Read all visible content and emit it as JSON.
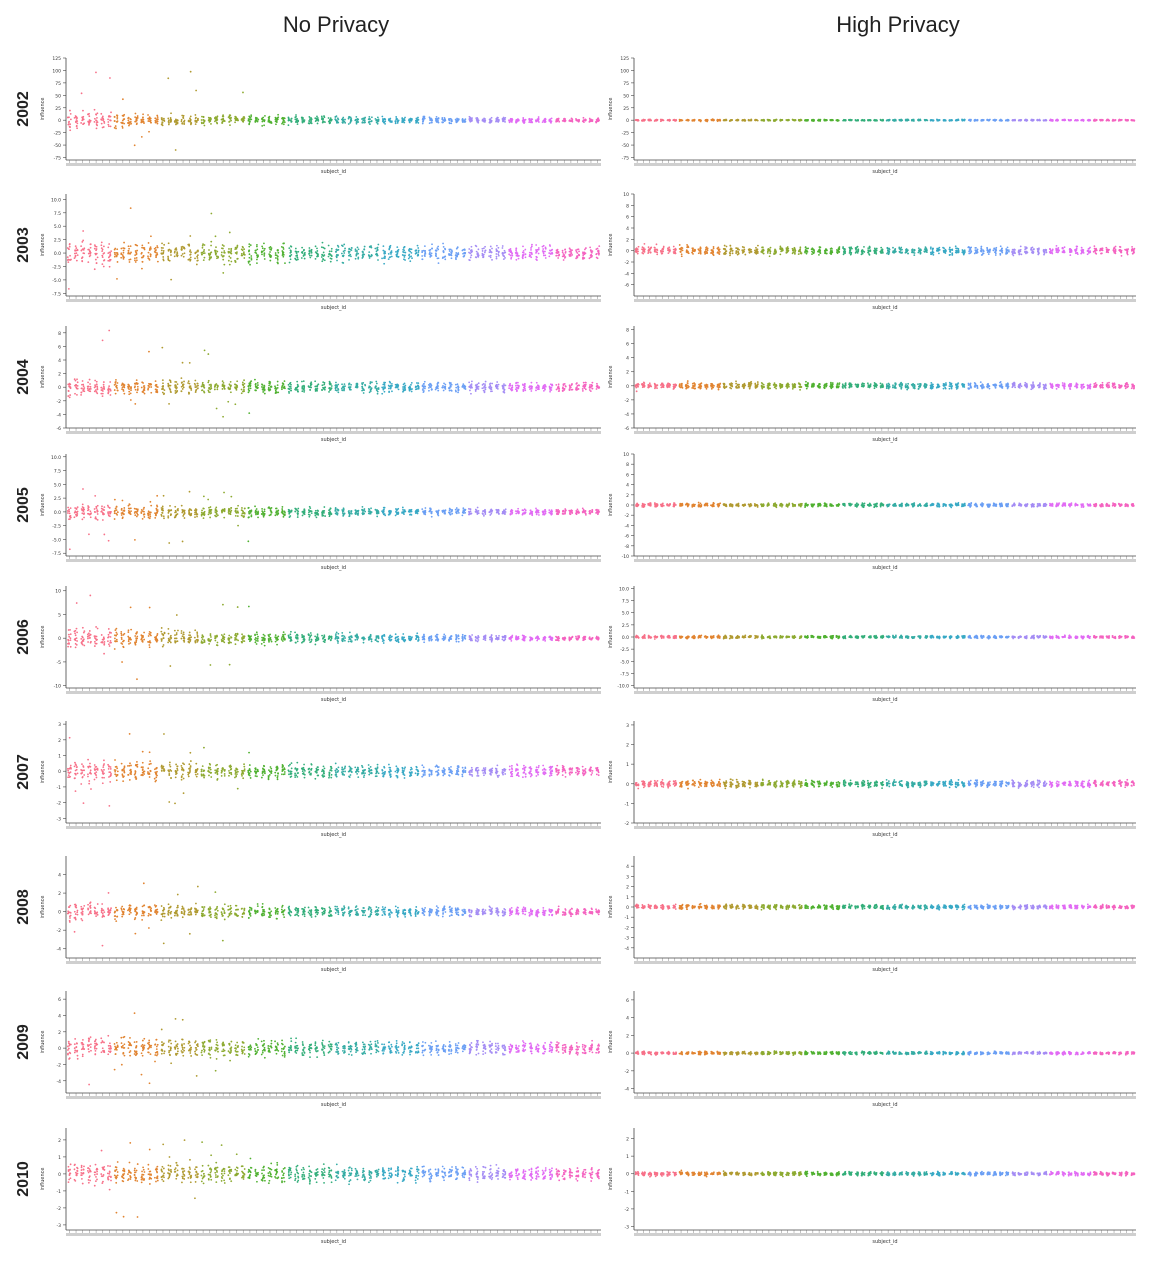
{
  "column_titles": {
    "left": "No Privacy",
    "right": "High Privacy"
  },
  "colors": [
    "#f77189",
    "#e18431",
    "#b09a31",
    "#8daa31",
    "#50b131",
    "#33ae7a",
    "#35aca4",
    "#38a9c5",
    "#6b9ff4",
    "#a48cf4",
    "#e16bf4",
    "#f463c0"
  ],
  "row_labels": [
    "2002",
    "2003",
    "2004",
    "2005",
    "2006",
    "2007",
    "2008",
    "2009",
    "2010"
  ],
  "chart_data": [
    {
      "type": "scatter",
      "plot_kind": "strip",
      "year": "2002",
      "privacy": "No Privacy",
      "xlabel": "subject_id",
      "ylabel": "influence",
      "ylim": [
        -80,
        125
      ],
      "yticks": [
        -75,
        -50,
        -25,
        0,
        25,
        50,
        75,
        100,
        125
      ],
      "yticklabels": [
        "-75",
        "-50",
        "-25",
        "0",
        "25",
        "50",
        "75",
        "100",
        "125"
      ],
      "n_categories": 80,
      "spread_start": 28,
      "spread_end": 6,
      "outlier_max": 120,
      "outlier_min": -75,
      "seed": 1
    },
    {
      "type": "scatter",
      "plot_kind": "strip",
      "year": "2002",
      "privacy": "High Privacy",
      "xlabel": "subject_id",
      "ylabel": "influence",
      "ylim": [
        -80,
        125
      ],
      "yticks": [
        -75,
        -50,
        -25,
        0,
        25,
        50,
        75,
        100,
        125
      ],
      "yticklabels": [
        "-75",
        "-50",
        "-25",
        "0",
        "25",
        "50",
        "75",
        "100",
        "125"
      ],
      "n_categories": 80,
      "spread_start": 2,
      "spread_end": 2,
      "outlier_max": 3,
      "outlier_min": -3,
      "seed": 2
    },
    {
      "type": "scatter",
      "plot_kind": "strip",
      "year": "2003",
      "privacy": "No Privacy",
      "xlabel": "subject_id",
      "ylabel": "influence",
      "ylim": [
        -8,
        11
      ],
      "yticks": [
        -7.5,
        -5,
        -2.5,
        0,
        2.5,
        5,
        7.5,
        10
      ],
      "yticklabels": [
        "-7.5",
        "-5.0",
        "-2.5",
        "0.0",
        "2.5",
        "5.0",
        "7.5",
        "10.0"
      ],
      "n_categories": 80,
      "spread_start": 3.5,
      "spread_end": 1.8,
      "outlier_max": 10,
      "outlier_min": -7,
      "seed": 3
    },
    {
      "type": "scatter",
      "plot_kind": "strip",
      "year": "2003",
      "privacy": "High Privacy",
      "xlabel": "subject_id",
      "ylabel": "influence",
      "ylim": [
        -8,
        10
      ],
      "yticks": [
        -6,
        -4,
        -2,
        0,
        2,
        4,
        6,
        8,
        10
      ],
      "yticklabels": [
        "-6",
        "-4",
        "-2",
        "0",
        "2",
        "4",
        "6",
        "8",
        "10"
      ],
      "n_categories": 80,
      "spread_start": 1,
      "spread_end": 1,
      "outlier_max": 1.3,
      "outlier_min": -1.3,
      "seed": 4
    },
    {
      "type": "scatter",
      "plot_kind": "strip",
      "year": "2004",
      "privacy": "No Privacy",
      "xlabel": "subject_id",
      "ylabel": "influence",
      "ylim": [
        -6,
        9
      ],
      "yticks": [
        -6,
        -4,
        -2,
        0,
        2,
        4,
        6,
        8
      ],
      "yticklabels": [
        "-6",
        "-4",
        "-2",
        "0",
        "2",
        "4",
        "6",
        "8"
      ],
      "n_categories": 80,
      "spread_start": 2,
      "spread_end": 0.9,
      "outlier_max": 9,
      "outlier_min": -6,
      "seed": 5
    },
    {
      "type": "scatter",
      "plot_kind": "strip",
      "year": "2004",
      "privacy": "High Privacy",
      "xlabel": "subject_id",
      "ylabel": "influence",
      "ylim": [
        -6,
        8.5
      ],
      "yticks": [
        -6,
        -4,
        -2,
        0,
        2,
        4,
        6,
        8
      ],
      "yticklabels": [
        "-6",
        "-4",
        "-2",
        "0",
        "2",
        "4",
        "6",
        "8"
      ],
      "n_categories": 80,
      "spread_start": 0.6,
      "spread_end": 0.6,
      "outlier_max": 0.8,
      "outlier_min": -0.8,
      "seed": 6
    },
    {
      "type": "scatter",
      "plot_kind": "strip",
      "year": "2005",
      "privacy": "No Privacy",
      "xlabel": "subject_id",
      "ylabel": "influence",
      "ylim": [
        -8,
        10.5
      ],
      "yticks": [
        -7.5,
        -5,
        -2.5,
        0,
        2.5,
        5,
        7.5,
        10
      ],
      "yticklabels": [
        "-7.5",
        "-5.0",
        "-2.5",
        "0.0",
        "2.5",
        "5.0",
        "7.5",
        "10.0"
      ],
      "n_categories": 80,
      "spread_start": 2.5,
      "spread_end": 0.7,
      "outlier_max": 4.5,
      "outlier_min": -7.5,
      "seed": 7
    },
    {
      "type": "scatter",
      "plot_kind": "strip",
      "year": "2005",
      "privacy": "High Privacy",
      "xlabel": "subject_id",
      "ylabel": "influence",
      "ylim": [
        -10,
        10
      ],
      "yticks": [
        -10,
        -8,
        -6,
        -4,
        -2,
        0,
        2,
        4,
        6,
        8,
        10
      ],
      "yticklabels": [
        "-10",
        "-8",
        "-6",
        "-4",
        "-2",
        "0",
        "2",
        "4",
        "6",
        "8",
        "10"
      ],
      "n_categories": 80,
      "spread_start": 0.5,
      "spread_end": 0.5,
      "outlier_max": 0.6,
      "outlier_min": -0.6,
      "seed": 8
    },
    {
      "type": "scatter",
      "plot_kind": "strip",
      "year": "2006",
      "privacy": "No Privacy",
      "xlabel": "subject_id",
      "ylabel": "influence",
      "ylim": [
        -10.5,
        11
      ],
      "yticks": [
        -10,
        -5,
        0,
        5,
        10
      ],
      "yticklabels": [
        "-10",
        "-5",
        "0",
        "5",
        "10"
      ],
      "n_categories": 80,
      "spread_start": 4,
      "spread_end": 0.6,
      "outlier_max": 10.5,
      "outlier_min": -10,
      "seed": 9
    },
    {
      "type": "scatter",
      "plot_kind": "strip",
      "year": "2006",
      "privacy": "High Privacy",
      "xlabel": "subject_id",
      "ylabel": "influence",
      "ylim": [
        -10.5,
        10.5
      ],
      "yticks": [
        -10,
        -7.5,
        -5,
        -2.5,
        0,
        2.5,
        5,
        7.5,
        10
      ],
      "yticklabels": [
        "-10.0",
        "-7.5",
        "-5.0",
        "-2.5",
        "0.0",
        "2.5",
        "5.0",
        "7.5",
        "10.0"
      ],
      "n_categories": 80,
      "spread_start": 0.4,
      "spread_end": 0.4,
      "outlier_max": 0.5,
      "outlier_min": -0.5,
      "seed": 10
    },
    {
      "type": "scatter",
      "plot_kind": "strip",
      "year": "2007",
      "privacy": "No Privacy",
      "xlabel": "subject_id",
      "ylabel": "influence",
      "ylim": [
        -3.3,
        3.2
      ],
      "yticks": [
        -3,
        -2,
        -1,
        0,
        1,
        2,
        3
      ],
      "yticklabels": [
        "-3",
        "-2",
        "-1",
        "0",
        "1",
        "2",
        "3"
      ],
      "n_categories": 80,
      "spread_start": 1.2,
      "spread_end": 0.45,
      "outlier_max": 3,
      "outlier_min": -2.5,
      "seed": 11
    },
    {
      "type": "scatter",
      "plot_kind": "strip",
      "year": "2007",
      "privacy": "High Privacy",
      "xlabel": "subject_id",
      "ylabel": "influence",
      "ylim": [
        -2,
        3.2
      ],
      "yticks": [
        -2,
        -1,
        0,
        1,
        2,
        3
      ],
      "yticklabels": [
        "-2",
        "-1",
        "0",
        "1",
        "2",
        "3"
      ],
      "n_categories": 80,
      "spread_start": 0.25,
      "spread_end": 0.25,
      "outlier_max": 0.3,
      "outlier_min": -0.3,
      "seed": 12
    },
    {
      "type": "scatter",
      "plot_kind": "strip",
      "year": "2008",
      "privacy": "No Privacy",
      "xlabel": "subject_id",
      "ylabel": "influence",
      "ylim": [
        -5,
        6
      ],
      "yticks": [
        -4,
        -2,
        0,
        2,
        4
      ],
      "yticklabels": [
        "-4",
        "-2",
        "0",
        "2",
        "4"
      ],
      "n_categories": 80,
      "spread_start": 1.6,
      "spread_end": 0.6,
      "outlier_max": 5,
      "outlier_min": -4.5,
      "seed": 13
    },
    {
      "type": "scatter",
      "plot_kind": "strip",
      "year": "2008",
      "privacy": "High Privacy",
      "xlabel": "subject_id",
      "ylabel": "influence",
      "ylim": [
        -5,
        5
      ],
      "yticks": [
        -4,
        -3,
        -2,
        -1,
        0,
        1,
        2,
        3,
        4
      ],
      "yticklabels": [
        "-4",
        "-3",
        "-2",
        "-1",
        "0",
        "1",
        "2",
        "3",
        "4"
      ],
      "n_categories": 80,
      "spread_start": 0.3,
      "spread_end": 0.3,
      "outlier_max": 0.35,
      "outlier_min": -0.35,
      "seed": 14
    },
    {
      "type": "scatter",
      "plot_kind": "strip",
      "year": "2009",
      "privacy": "No Privacy",
      "xlabel": "subject_id",
      "ylabel": "influence",
      "ylim": [
        -5.5,
        7
      ],
      "yticks": [
        -4,
        -2,
        0,
        2,
        4,
        6
      ],
      "yticklabels": [
        "-4",
        "-2",
        "0",
        "2",
        "4",
        "6"
      ],
      "n_categories": 80,
      "spread_start": 2.2,
      "spread_end": 1,
      "outlier_max": 6.5,
      "outlier_min": -5,
      "seed": 15
    },
    {
      "type": "scatter",
      "plot_kind": "strip",
      "year": "2009",
      "privacy": "High Privacy",
      "xlabel": "subject_id",
      "ylabel": "influence",
      "ylim": [
        -4.5,
        7
      ],
      "yticks": [
        -4,
        -2,
        0,
        2,
        4,
        6
      ],
      "yticklabels": [
        "-4",
        "-2",
        "0",
        "2",
        "4",
        "6"
      ],
      "n_categories": 80,
      "spread_start": 0.25,
      "spread_end": 0.25,
      "outlier_max": 0.3,
      "outlier_min": -0.3,
      "seed": 16
    },
    {
      "type": "scatter",
      "plot_kind": "strip",
      "year": "2010",
      "privacy": "No Privacy",
      "xlabel": "subject_id",
      "ylabel": "influence",
      "ylim": [
        -3.3,
        2.7
      ],
      "yticks": [
        -3,
        -2,
        -1,
        0,
        1,
        2
      ],
      "yticklabels": [
        "-3",
        "-2",
        "-1",
        "0",
        "1",
        "2"
      ],
      "n_categories": 80,
      "spread_start": 1.1,
      "spread_end": 0.55,
      "outlier_max": 2.5,
      "outlier_min": -3,
      "seed": 17
    },
    {
      "type": "scatter",
      "plot_kind": "strip",
      "year": "2010",
      "privacy": "High Privacy",
      "xlabel": "subject_id",
      "ylabel": "influence",
      "ylim": [
        -3.2,
        2.6
      ],
      "yticks": [
        -3,
        -2,
        -1,
        0,
        1,
        2
      ],
      "yticklabels": [
        "-3",
        "-2",
        "-1",
        "0",
        "1",
        "2"
      ],
      "n_categories": 80,
      "spread_start": 0.15,
      "spread_end": 0.15,
      "outlier_max": 0.2,
      "outlier_min": -0.2,
      "seed": 18
    }
  ]
}
